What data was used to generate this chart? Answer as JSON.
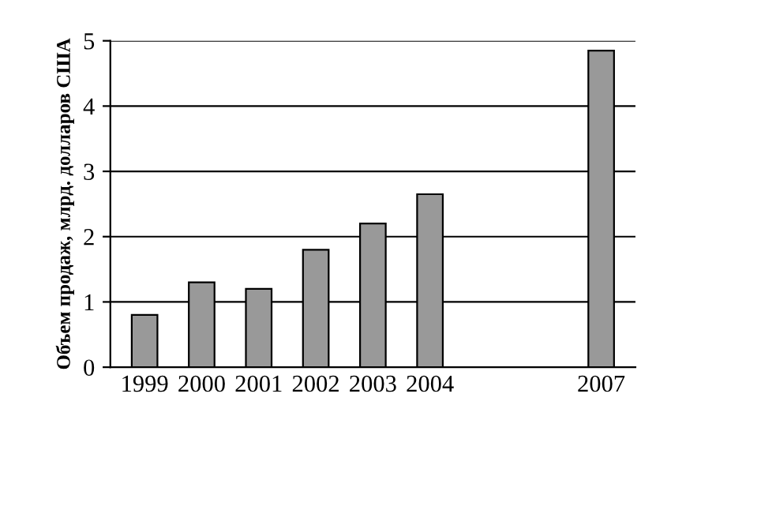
{
  "chart_data": {
    "type": "bar",
    "ylabel": "Объем продаж, млрд. долларов США",
    "categories": [
      "1999",
      "2000",
      "2001",
      "2002",
      "2003",
      "2004",
      null,
      null,
      "2007"
    ],
    "values": [
      0.8,
      1.3,
      1.2,
      1.8,
      2.2,
      2.65,
      null,
      null,
      4.85
    ],
    "color": "#999999",
    "ylim": [
      0,
      5
    ],
    "yticks": [
      0,
      1,
      2,
      3,
      4,
      5
    ],
    "grid": "y"
  }
}
